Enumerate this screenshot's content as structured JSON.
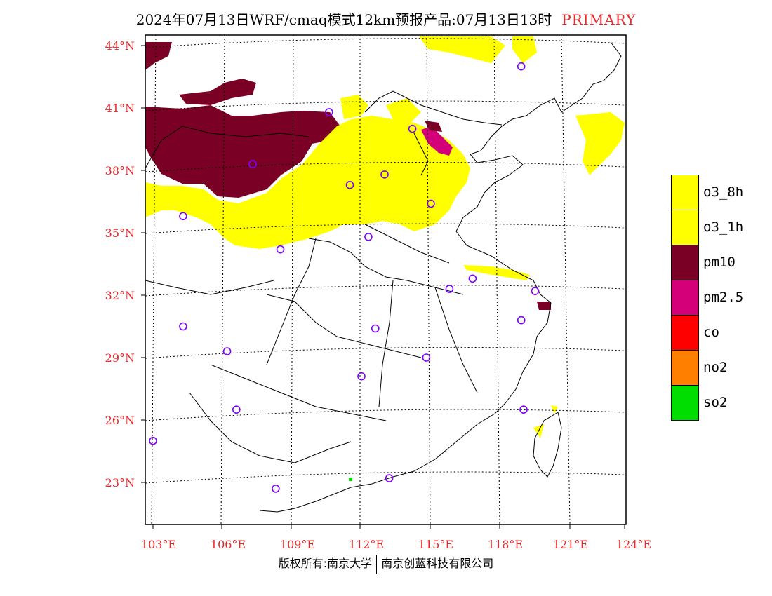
{
  "title": {
    "main": "2024年07月13日WRF/cmaq模式12km预报产品:07月13日13时",
    "tag": "PRIMARY"
  },
  "axes": {
    "lat_labels": [
      "44°N",
      "41°N",
      "38°N",
      "35°N",
      "32°N",
      "29°N",
      "26°N",
      "23°N"
    ],
    "lon_labels": [
      "103°E",
      "106°E",
      "109°E",
      "112°E",
      "115°E",
      "118°E",
      "121°E",
      "124°E"
    ]
  },
  "legend": {
    "items": [
      {
        "label": "o3_8h",
        "color": "#ffff00"
      },
      {
        "label": "o3_1h",
        "color": "#ffff00"
      },
      {
        "label": "pm10",
        "color": "#7a0026"
      },
      {
        "label": "pm2.5",
        "color": "#d4007a"
      },
      {
        "label": "co",
        "color": "#ff0000"
      },
      {
        "label": "no2",
        "color": "#ff8000"
      },
      {
        "label": "so2",
        "color": "#00dd00"
      }
    ]
  },
  "footer": {
    "left": "版权所有:南京大学",
    "right": "南京创蓝科技有限公司"
  },
  "colors": {
    "accent": "#e8282a",
    "station_circle": "#8000ff"
  },
  "map_data": {
    "lon_range": [
      103,
      124
    ],
    "lat_range": [
      21,
      44.5
    ],
    "stations": [
      [
        118.9,
        43.0
      ],
      [
        110.6,
        40.8
      ],
      [
        114.2,
        40.0
      ],
      [
        107.3,
        38.3
      ],
      [
        111.5,
        37.3
      ],
      [
        113.0,
        37.8
      ],
      [
        115.0,
        36.4
      ],
      [
        104.3,
        35.8
      ],
      [
        112.3,
        34.8
      ],
      [
        108.5,
        34.2
      ],
      [
        116.8,
        32.8
      ],
      [
        115.8,
        32.3
      ],
      [
        119.5,
        32.2
      ],
      [
        104.3,
        30.5
      ],
      [
        112.6,
        30.4
      ],
      [
        118.9,
        30.8
      ],
      [
        106.2,
        29.3
      ],
      [
        114.8,
        29.0
      ],
      [
        112.0,
        28.1
      ],
      [
        119.0,
        26.5
      ],
      [
        106.6,
        26.5
      ],
      [
        103.0,
        25.0
      ],
      [
        108.3,
        22.7
      ],
      [
        113.2,
        23.2
      ]
    ]
  }
}
